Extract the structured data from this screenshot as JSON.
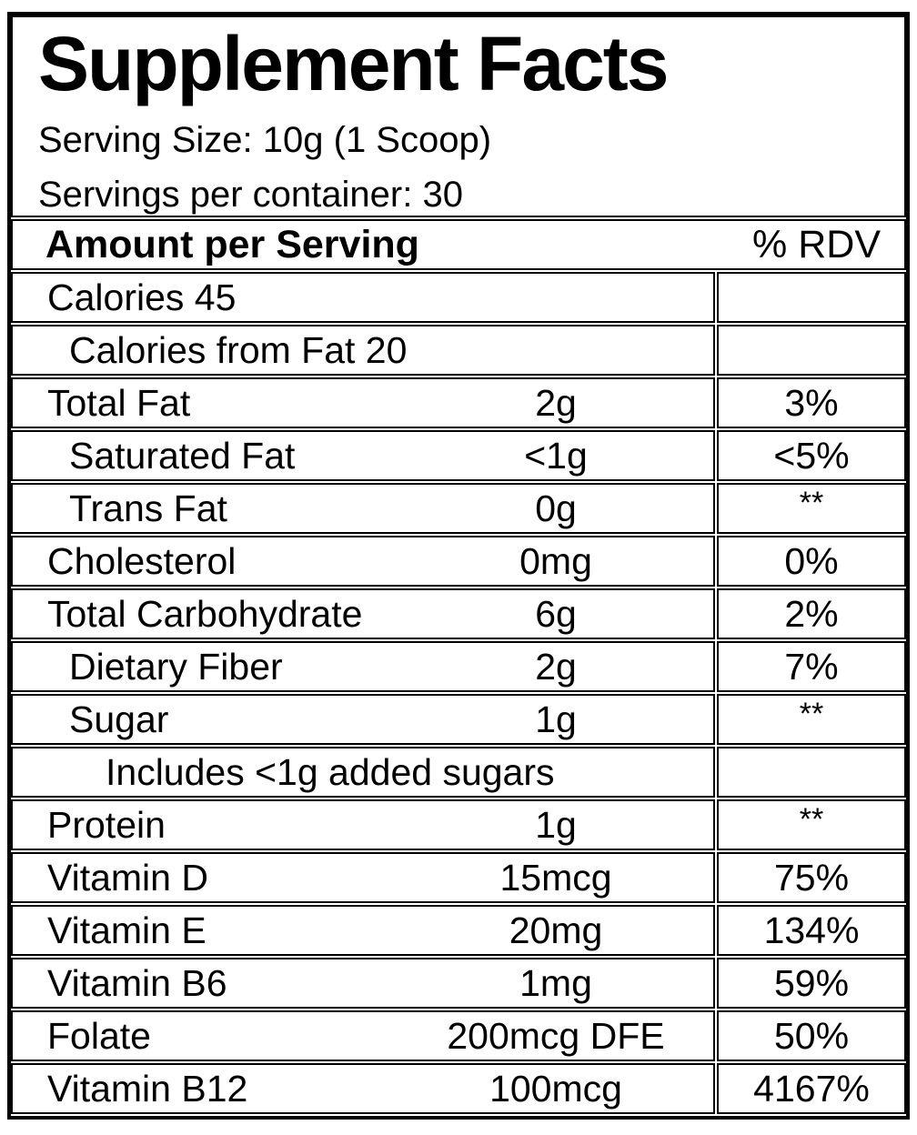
{
  "label": {
    "title": "Supplement Facts",
    "serving_size": "Serving Size: 10g (1 Scoop)",
    "servings_per_container": "Servings per container: 30"
  },
  "table": {
    "header": {
      "amount_col": "Amount per Serving",
      "rdv_col": "% RDV"
    },
    "rows": [
      {
        "label": "Calories 45",
        "indent": 0,
        "amount": "",
        "rdv": ""
      },
      {
        "label": "Calories from Fat 20",
        "indent": 1,
        "amount": "",
        "rdv": ""
      },
      {
        "label": "Total Fat",
        "indent": 0,
        "amount": "2g",
        "rdv": "3%"
      },
      {
        "label": "Saturated Fat",
        "indent": 1,
        "amount": "<1g",
        "rdv": "<5%"
      },
      {
        "label": "Trans Fat",
        "indent": 1,
        "amount": "0g",
        "rdv": "**"
      },
      {
        "label": "Cholesterol",
        "indent": 0,
        "amount": "0mg",
        "rdv": "0%"
      },
      {
        "label": "Total Carbohydrate",
        "indent": 0,
        "amount": "6g",
        "rdv": "2%"
      },
      {
        "label": "Dietary Fiber",
        "indent": 1,
        "amount": "2g",
        "rdv": "7%"
      },
      {
        "label": "Sugar",
        "indent": 1,
        "amount": "1g",
        "rdv": "**"
      },
      {
        "label": "Includes <1g added sugars",
        "indent": 2,
        "amount": "",
        "rdv": ""
      },
      {
        "label": "Protein",
        "indent": 0,
        "amount": "1g",
        "rdv": "**"
      },
      {
        "label": "Vitamin D",
        "indent": 0,
        "amount": "15mcg",
        "rdv": "75%"
      },
      {
        "label": "Vitamin E",
        "indent": 0,
        "amount": "20mg",
        "rdv": "134%"
      },
      {
        "label": "Vitamin B6",
        "indent": 0,
        "amount": "1mg",
        "rdv": "59%"
      },
      {
        "label": "Folate",
        "indent": 0,
        "amount": "200mcg DFE",
        "rdv": "50%"
      },
      {
        "label": "Vitamin B12",
        "indent": 0,
        "amount": "100mcg",
        "rdv": "4167%"
      }
    ]
  },
  "colors": {
    "border": "#000000",
    "text": "#000000",
    "background": "#ffffff"
  }
}
